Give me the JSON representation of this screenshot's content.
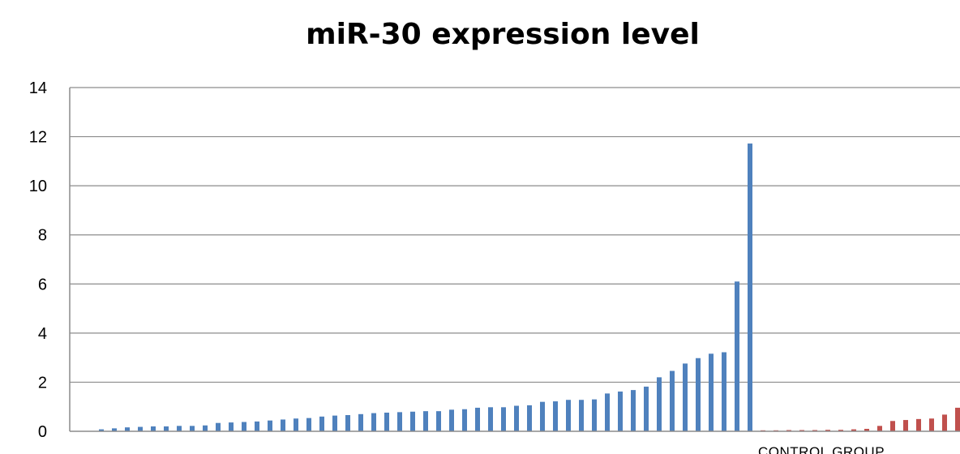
{
  "chart_data": {
    "type": "bar",
    "title": "miR-30 expression level",
    "xlabel": "",
    "ylabel": "",
    "ylim": [
      0,
      14
    ],
    "yticks": [
      0,
      2,
      4,
      6,
      8,
      10,
      12,
      14
    ],
    "grid": true,
    "group_labels": {
      "control": "CONTROL GROUP"
    },
    "colors": {
      "patients": "#4f81bd",
      "control": "#c0504d"
    },
    "series": [
      {
        "values": [
          0.08,
          0.12,
          0.16,
          0.18,
          0.2,
          0.2,
          0.22,
          0.22,
          0.24,
          0.34,
          0.36,
          0.38,
          0.4,
          0.44,
          0.48,
          0.52,
          0.54,
          0.6,
          0.64,
          0.66,
          0.7,
          0.74,
          0.76,
          0.78,
          0.8,
          0.82,
          0.82,
          0.88,
          0.9,
          0.96,
          0.98,
          0.98,
          1.04,
          1.06,
          1.2,
          1.22,
          1.28,
          1.28,
          1.3,
          1.54,
          1.62,
          1.68,
          1.82,
          2.2,
          2.46,
          2.76,
          2.98,
          3.16,
          3.22,
          6.1,
          11.72
        ]
      },
      {
        "values": [
          0.04,
          0.04,
          0.05,
          0.05,
          0.05,
          0.06,
          0.06,
          0.08,
          0.1,
          0.22,
          0.42,
          0.46,
          0.5,
          0.52,
          0.68,
          0.96,
          1.08
        ]
      }
    ]
  }
}
